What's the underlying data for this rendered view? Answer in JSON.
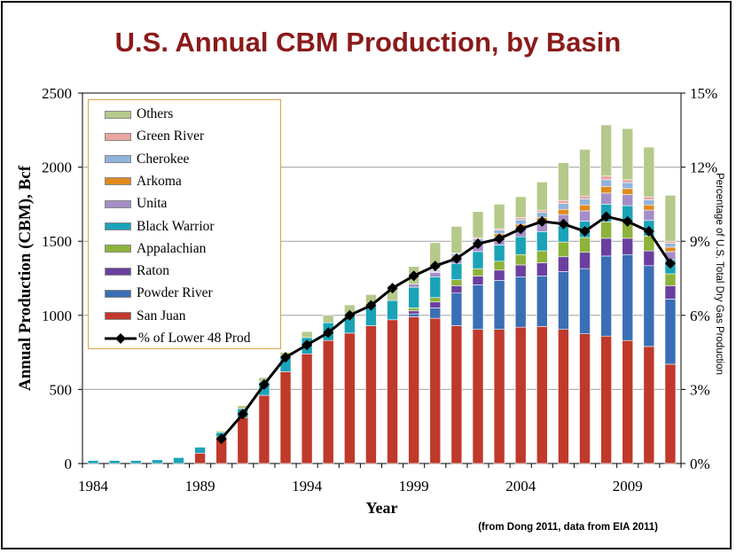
{
  "page": {
    "title": "U.S. Annual CBM Production, by Basin",
    "source_note": "(from Dong 2011, data from EIA 2011)"
  },
  "chart_data": {
    "type": "bar",
    "stacked": true,
    "xlabel": "Year",
    "ylabel": "Annual Production (CBM), Bcf",
    "y2label": "Percentage of U.S. Total Dry Gas Production",
    "ylim": [
      0,
      2500
    ],
    "y2lim": [
      0,
      15
    ],
    "yticks": [
      0,
      500,
      1000,
      1500,
      2000,
      2500
    ],
    "y2ticks": [
      "0%",
      "3%",
      "6%",
      "9%",
      "12%",
      "15%"
    ],
    "xtick_labels": [
      "1984",
      "1989",
      "1994",
      "1999",
      "2004",
      "2009"
    ],
    "grid": "horizontal",
    "legend_position": "top-left",
    "categories": [
      1984,
      1985,
      1986,
      1987,
      1988,
      1989,
      1990,
      1991,
      1992,
      1993,
      1994,
      1995,
      1996,
      1997,
      1998,
      1999,
      2000,
      2001,
      2002,
      2003,
      2004,
      2005,
      2006,
      2007,
      2008,
      2009,
      2010,
      2011
    ],
    "series": [
      {
        "name": "San Juan",
        "color": "#c0392b",
        "values": [
          0,
          0,
          0,
          0,
          0,
          70,
          180,
          310,
          460,
          620,
          740,
          830,
          880,
          930,
          970,
          990,
          980,
          930,
          905,
          905,
          920,
          925,
          905,
          875,
          860,
          830,
          790,
          670
        ]
      },
      {
        "name": "Powder River",
        "color": "#3a6fb5",
        "values": [
          0,
          0,
          0,
          0,
          0,
          0,
          0,
          0,
          0,
          0,
          0,
          0,
          0,
          0,
          0,
          20,
          70,
          220,
          300,
          330,
          340,
          340,
          390,
          440,
          540,
          580,
          545,
          440
        ]
      },
      {
        "name": "Raton",
        "color": "#6b3fa0",
        "values": [
          0,
          0,
          0,
          0,
          0,
          0,
          0,
          0,
          0,
          0,
          0,
          0,
          0,
          0,
          0,
          20,
          40,
          50,
          60,
          70,
          80,
          90,
          100,
          110,
          120,
          110,
          100,
          90
        ]
      },
      {
        "name": "Appalachian",
        "color": "#8db33a",
        "values": [
          0,
          0,
          0,
          0,
          0,
          0,
          0,
          0,
          0,
          0,
          0,
          0,
          0,
          0,
          0,
          20,
          30,
          40,
          50,
          60,
          70,
          80,
          100,
          100,
          110,
          110,
          100,
          80
        ]
      },
      {
        "name": "Black Warrior",
        "color": "#1aa3b8",
        "values": [
          20,
          20,
          20,
          25,
          40,
          40,
          30,
          60,
          90,
          100,
          110,
          120,
          130,
          130,
          130,
          140,
          140,
          110,
          115,
          110,
          120,
          130,
          110,
          110,
          120,
          110,
          105,
          95
        ]
      },
      {
        "name": "Unita",
        "color": "#a48ec8",
        "values": [
          0,
          0,
          0,
          0,
          0,
          0,
          0,
          0,
          0,
          0,
          0,
          0,
          0,
          0,
          0,
          20,
          30,
          40,
          50,
          55,
          60,
          65,
          75,
          70,
          75,
          75,
          70,
          55
        ]
      },
      {
        "name": "Arkoma",
        "color": "#e08a1e",
        "values": [
          0,
          0,
          0,
          0,
          0,
          0,
          0,
          0,
          0,
          0,
          0,
          0,
          0,
          0,
          0,
          0,
          5,
          10,
          15,
          20,
          25,
          30,
          35,
          40,
          45,
          40,
          35,
          30
        ]
      },
      {
        "name": "Cherokee",
        "color": "#8fb4dc",
        "values": [
          0,
          0,
          0,
          0,
          0,
          0,
          0,
          0,
          0,
          0,
          0,
          0,
          0,
          0,
          0,
          0,
          10,
          15,
          20,
          25,
          30,
          35,
          40,
          40,
          45,
          40,
          35,
          25
        ]
      },
      {
        "name": "Green River",
        "color": "#e8a7a0",
        "values": [
          0,
          0,
          0,
          0,
          0,
          0,
          0,
          0,
          0,
          0,
          0,
          0,
          0,
          0,
          0,
          0,
          5,
          5,
          10,
          10,
          15,
          15,
          20,
          20,
          25,
          20,
          20,
          15
        ]
      },
      {
        "name": "Others",
        "color": "#b5c98a",
        "values": [
          0,
          0,
          0,
          0,
          0,
          0,
          10,
          20,
          30,
          30,
          40,
          50,
          60,
          80,
          100,
          120,
          180,
          180,
          175,
          165,
          140,
          190,
          255,
          315,
          345,
          345,
          335,
          310
        ]
      }
    ],
    "line_series": {
      "name": "% of Lower 48 Prod",
      "axis": "right",
      "x": [
        1990,
        1991,
        1992,
        1993,
        1994,
        1995,
        1996,
        1997,
        1998,
        1999,
        2000,
        2001,
        2002,
        2003,
        2004,
        2005,
        2006,
        2007,
        2008,
        2009,
        2010,
        2011
      ],
      "values": [
        1.0,
        2.0,
        3.2,
        4.3,
        4.8,
        5.3,
        6.0,
        6.4,
        7.1,
        7.6,
        8.0,
        8.3,
        8.9,
        9.1,
        9.5,
        9.8,
        9.7,
        9.4,
        10.0,
        9.8,
        9.4,
        8.1
      ]
    },
    "legend_order": [
      "Others",
      "Green River",
      "Cherokee",
      "Arkoma",
      "Unita",
      "Black Warrior",
      "Appalachian",
      "Raton",
      "Powder River",
      "San Juan",
      "% of Lower 48 Prod"
    ]
  }
}
